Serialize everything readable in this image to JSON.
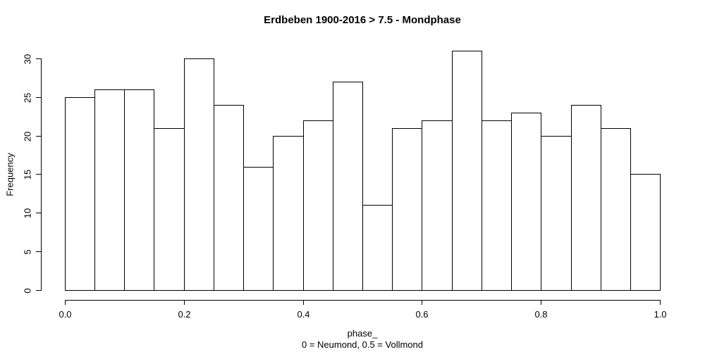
{
  "figure": {
    "background": "#ffffff",
    "text_color": "#000000"
  },
  "chart_data": {
    "type": "bar",
    "subtype": "histogram",
    "title": "Erdbeben 1900-2016 > 7.5 - Mondphase",
    "xlabel": "phase_",
    "xlabel_sub": "0 = Neumond, 0.5 = Vollmond",
    "ylabel": "Frequency",
    "bin_edges": [
      0,
      0.05,
      0.1,
      0.15,
      0.2,
      0.25,
      0.3,
      0.35,
      0.4,
      0.45,
      0.5,
      0.55,
      0.6,
      0.65,
      0.7,
      0.75,
      0.8,
      0.85,
      0.9,
      0.95,
      1.0
    ],
    "values": [
      25,
      26,
      26,
      21,
      30,
      24,
      16,
      20,
      22,
      27,
      11,
      21,
      22,
      31,
      22,
      23,
      20,
      24,
      21,
      15
    ],
    "xlim": [
      0,
      1
    ],
    "ylim": [
      0,
      31
    ],
    "xticks": [
      0,
      0.2,
      0.4,
      0.6,
      0.8,
      1.0
    ],
    "xtick_labels": [
      "0.0",
      "0.2",
      "0.4",
      "0.6",
      "0.8",
      "1.0"
    ],
    "yticks": [
      0,
      5,
      10,
      15,
      20,
      25,
      30
    ],
    "ytick_labels": [
      "0",
      "5",
      "10",
      "15",
      "20",
      "25",
      "30"
    ],
    "grid": false,
    "legend": null,
    "bar_fill": "#ffffff",
    "bar_stroke": "#000000",
    "axis_color": "#000000"
  }
}
